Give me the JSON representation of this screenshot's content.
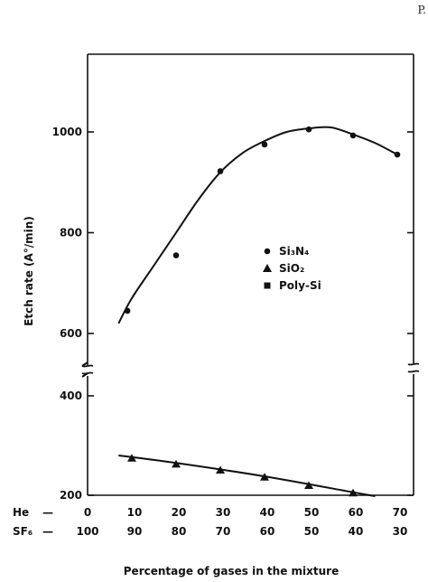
{
  "page": {
    "corner_text": "P."
  },
  "chart_data": {
    "type": "scatter",
    "title": "",
    "ylabel": "Etch rate (A°/min)",
    "xlabel": "Percentage of gases in the mixture",
    "x_axis_rows": [
      {
        "name": "He",
        "dash": "—",
        "ticks": [
          "0",
          "10",
          "20",
          "30",
          "40",
          "50",
          "60",
          "70"
        ]
      },
      {
        "name": "SF₆",
        "dash": "—",
        "ticks": [
          "100",
          "90",
          "80",
          "70",
          "60",
          "50",
          "40",
          "30"
        ]
      }
    ],
    "x_range": [
      0,
      70
    ],
    "y_axis": {
      "broken": true,
      "lower_segment": {
        "range": [
          200,
          400
        ],
        "ticks": [
          "200",
          "400"
        ]
      },
      "upper_segment": {
        "range": [
          600,
          1000
        ],
        "ticks": [
          "600",
          "800",
          "1000"
        ]
      }
    },
    "legend": {
      "placement": "center-right",
      "entries": [
        {
          "marker": "circle",
          "label": "Si₃N₄"
        },
        {
          "marker": "triangle",
          "label": "SiO₂"
        },
        {
          "marker": "square",
          "label": "Poly-Si"
        }
      ]
    },
    "series": [
      {
        "marker": "circle",
        "points": [
          {
            "x": 9,
            "y": 645
          },
          {
            "x": 20,
            "y": 755
          },
          {
            "x": 30,
            "y": 922
          },
          {
            "x": 40,
            "y": 975
          },
          {
            "x": 50,
            "y": 1005
          },
          {
            "x": 60,
            "y": 993
          },
          {
            "x": 70,
            "y": 955
          }
        ],
        "fit_curve": [
          {
            "x": 7,
            "y": 620
          },
          {
            "x": 10,
            "y": 670
          },
          {
            "x": 15,
            "y": 735
          },
          {
            "x": 20,
            "y": 800
          },
          {
            "x": 25,
            "y": 865
          },
          {
            "x": 30,
            "y": 920
          },
          {
            "x": 35,
            "y": 958
          },
          {
            "x": 40,
            "y": 982
          },
          {
            "x": 45,
            "y": 1000
          },
          {
            "x": 50,
            "y": 1007
          },
          {
            "x": 55,
            "y": 1009
          },
          {
            "x": 60,
            "y": 995
          },
          {
            "x": 65,
            "y": 978
          },
          {
            "x": 70,
            "y": 955
          }
        ]
      },
      {
        "marker": "triangle",
        "points": [
          {
            "x": 10,
            "y": 274
          },
          {
            "x": 20,
            "y": 262
          },
          {
            "x": 30,
            "y": 250
          },
          {
            "x": 40,
            "y": 236
          },
          {
            "x": 50,
            "y": 219
          },
          {
            "x": 60,
            "y": 204
          }
        ],
        "fit_curve": [
          {
            "x": 7,
            "y": 280
          },
          {
            "x": 20,
            "y": 265
          },
          {
            "x": 40,
            "y": 238
          },
          {
            "x": 60,
            "y": 206
          },
          {
            "x": 65,
            "y": 198
          }
        ]
      }
    ],
    "colors": {
      "ink": "#111111",
      "background": "#ffffff"
    }
  }
}
